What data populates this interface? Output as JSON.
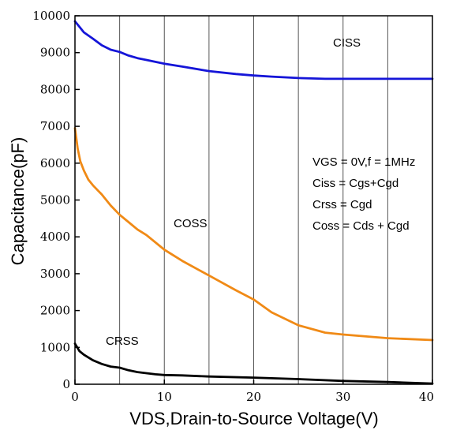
{
  "chart_data": {
    "type": "line",
    "title": "",
    "xlabel": "VDS,Drain-to-Source Voltage(V)",
    "ylabel": "Capacitance(pF)",
    "xlim": [
      0,
      40
    ],
    "ylim": [
      0,
      10000
    ],
    "x_ticks": [
      "0",
      "10",
      "20",
      "30",
      "40"
    ],
    "y_ticks": [
      "0",
      "1000",
      "2000",
      "3000",
      "4000",
      "5000",
      "6000",
      "7000",
      "8000",
      "9000",
      "10000"
    ],
    "grid": "vertical lines every 5 V",
    "series": [
      {
        "name": "CISS",
        "color": "#1515d8",
        "x": [
          0,
          0.5,
          1,
          2,
          3,
          4,
          5,
          6,
          7,
          8,
          10,
          12,
          15,
          18,
          20,
          22,
          25,
          28,
          30,
          35,
          40
        ],
        "values": [
          9850,
          9700,
          9550,
          9380,
          9200,
          9080,
          9020,
          8920,
          8850,
          8800,
          8700,
          8620,
          8500,
          8420,
          8380,
          8350,
          8310,
          8290,
          8290,
          8290,
          8290
        ]
      },
      {
        "name": "COSS",
        "color": "#f08a16",
        "x": [
          0,
          0.3,
          0.6,
          1,
          1.5,
          2,
          3,
          4,
          5,
          6,
          7,
          8,
          10,
          12,
          15,
          18,
          20,
          22,
          25,
          28,
          30,
          35,
          40
        ],
        "values": [
          6950,
          6400,
          6050,
          5800,
          5550,
          5400,
          5150,
          4850,
          4600,
          4400,
          4200,
          4050,
          3650,
          3350,
          2950,
          2550,
          2300,
          1950,
          1600,
          1400,
          1350,
          1250,
          1200
        ]
      },
      {
        "name": "CRSS",
        "color": "#000000",
        "x": [
          0,
          0.5,
          1,
          2,
          3,
          4,
          5,
          6,
          7,
          8,
          9,
          10,
          12,
          15,
          20,
          25,
          30,
          35,
          40
        ],
        "values": [
          1100,
          900,
          800,
          650,
          550,
          480,
          450,
          380,
          330,
          300,
          270,
          250,
          240,
          210,
          180,
          140,
          90,
          60,
          20
        ]
      }
    ],
    "series_labels": {
      "ciss": "CISS",
      "coss": "COSS",
      "crss": "CRSS"
    },
    "annotations": [
      "VGS  = 0V,f = 1MHz",
      "Ciss = Cgs+Cgd",
      "Crss = Cgd",
      "Coss = Cds + Cgd"
    ]
  }
}
